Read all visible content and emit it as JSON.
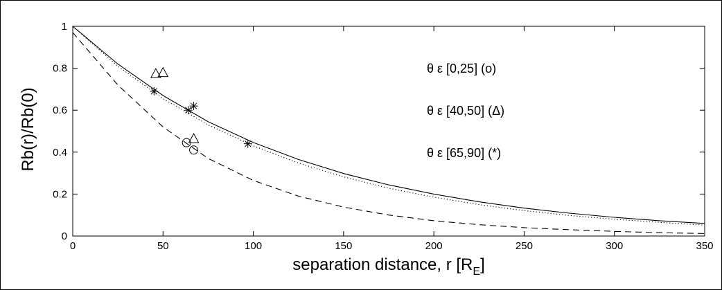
{
  "chart_data": {
    "type": "line",
    "title": "",
    "xlabel": "separation distance, r [R",
    "xlabel_subscript": "E",
    "xlabel_close": "]",
    "ylabel": "Rb(r)/Rb(0)",
    "xlim": [
      0,
      350
    ],
    "ylim": [
      0,
      1
    ],
    "xticks": [
      "0",
      "50",
      "100",
      "150",
      "200",
      "250",
      "300",
      "350"
    ],
    "yticks": [
      "0",
      "0.2",
      "0.4",
      "0.6",
      "0.8",
      "1"
    ],
    "grid": false,
    "legend_position": "upper-right",
    "series": [
      {
        "style": "solid",
        "x": [
          0,
          25,
          50,
          75,
          100,
          125,
          150,
          175,
          200,
          225,
          250,
          275,
          300,
          325,
          350
        ],
        "y": [
          1.0,
          0.82,
          0.67,
          0.545,
          0.446,
          0.365,
          0.298,
          0.244,
          0.2,
          0.163,
          0.133,
          0.109,
          0.089,
          0.073,
          0.06
        ]
      },
      {
        "style": "dotted",
        "x": [
          0,
          25,
          50,
          75,
          100,
          125,
          150,
          175,
          200,
          225,
          250,
          275,
          300,
          325,
          350
        ],
        "y": [
          1.0,
          0.81,
          0.655,
          0.53,
          0.43,
          0.348,
          0.282,
          0.228,
          0.185,
          0.15,
          0.121,
          0.098,
          0.08,
          0.065,
          0.052
        ]
      },
      {
        "style": "dashed",
        "x": [
          0,
          25,
          50,
          75,
          100,
          125,
          150,
          175,
          200,
          225,
          250,
          275,
          300,
          325,
          350
        ],
        "y": [
          0.97,
          0.72,
          0.52,
          0.37,
          0.265,
          0.19,
          0.138,
          0.1,
          0.073,
          0.054,
          0.04,
          0.03,
          0.022,
          0.016,
          0.012
        ]
      }
    ],
    "points": [
      {
        "marker": "circle",
        "x": [
          63,
          67
        ],
        "y": [
          0.445,
          0.41
        ]
      },
      {
        "marker": "triangle",
        "x": [
          46,
          50,
          67
        ],
        "y": [
          0.775,
          0.78,
          0.465
        ]
      },
      {
        "marker": "star",
        "x": [
          45,
          64,
          67,
          97
        ],
        "y": [
          0.69,
          0.6,
          0.62,
          0.44
        ]
      }
    ],
    "legend": [
      {
        "prefix": "θ ε [0,25] (o)"
      },
      {
        "prefix": "θ ε [40,50] (Δ)"
      },
      {
        "prefix": "θ ε [65,90] (*)"
      }
    ]
  }
}
